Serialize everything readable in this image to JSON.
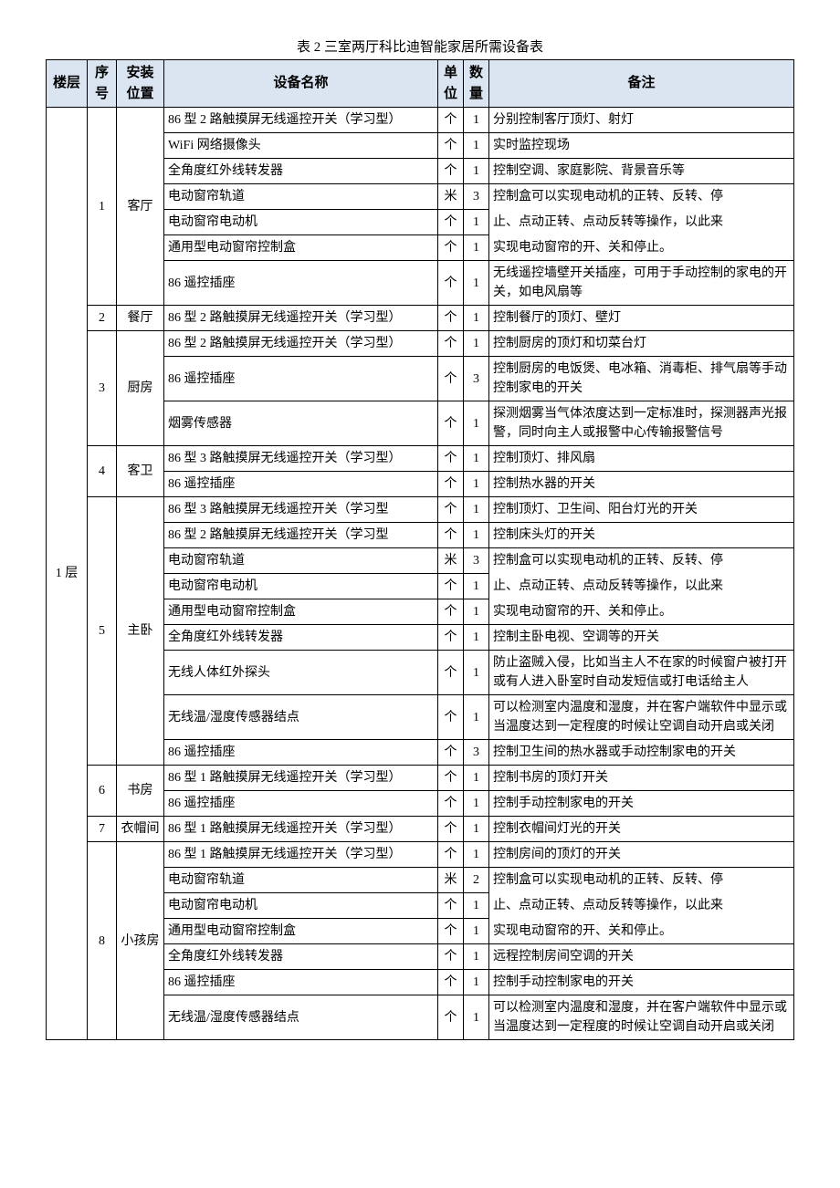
{
  "caption": "表 2    三室两厅科比迪智能家居所需设备表",
  "headers": {
    "floor": "楼层",
    "seq": "序\n号",
    "location": "安装\n位置",
    "name": "设备名称",
    "unit": "单\n位",
    "qty": "数\n量",
    "remark": "备注"
  },
  "floor": "1 层",
  "colors": {
    "header_bg": "#dbe5f1",
    "border": "#000000",
    "text": "#000000",
    "page_bg": "#ffffff"
  },
  "typography": {
    "body_fontsize_pt": 10.5,
    "header_fontsize_pt": 11,
    "font_family": "SimSun"
  },
  "sections": [
    {
      "seq": "1",
      "location": "客厅",
      "items": [
        {
          "name": "86 型 2 路触摸屏无线遥控开关（学习型）",
          "unit": "个",
          "qty": "1",
          "remark": "分别控制客厅顶灯、射灯"
        },
        {
          "name": "WiFi 网络摄像头",
          "unit": "个",
          "qty": "1",
          "remark": "实时监控现场"
        },
        {
          "name": "全角度红外线转发器",
          "unit": "个",
          "qty": "1",
          "remark": "控制空调、家庭影院、背景音乐等"
        },
        {
          "name": "电动窗帘轨道",
          "unit": "米",
          "qty": "3",
          "remark": "控制盒可以实现电动机的正转、反转、停",
          "remark_border": "no-bottom"
        },
        {
          "name": "电动窗帘电动机",
          "unit": "个",
          "qty": "1",
          "remark": "止、点动正转、点动反转等操作，以此来",
          "remark_border": "no-tb"
        },
        {
          "name": "通用型电动窗帘控制盒",
          "unit": "个",
          "qty": "1",
          "remark": "实现电动窗帘的开、关和停止。",
          "remark_border": "no-top"
        },
        {
          "name": "86 遥控插座",
          "unit": "个",
          "qty": "1",
          "remark": "无线遥控墙壁开关插座，可用于手动控制的家电的开关，如电风扇等"
        }
      ]
    },
    {
      "seq": "2",
      "location": "餐厅",
      "items": [
        {
          "name": "86 型 2 路触摸屏无线遥控开关（学习型）",
          "unit": "个",
          "qty": "1",
          "remark": "控制餐厅的顶灯、壁灯"
        }
      ]
    },
    {
      "seq": "3",
      "location": "厨房",
      "items": [
        {
          "name": "86 型 2 路触摸屏无线遥控开关（学习型）",
          "unit": "个",
          "qty": "1",
          "remark": "控制厨房的顶灯和切菜台灯"
        },
        {
          "name": "86 遥控插座",
          "unit": "个",
          "qty": "3",
          "remark": "控制厨房的电饭煲、电冰箱、消毒柜、排气扇等手动控制家电的开关"
        },
        {
          "name": "烟雾传感器",
          "unit": "个",
          "qty": "1",
          "remark": "探测烟雾当气体浓度达到一定标准时，探测器声光报警，同时向主人或报警中心传输报警信号"
        }
      ]
    },
    {
      "seq": "4",
      "location": "客卫",
      "items": [
        {
          "name": "86 型 3 路触摸屏无线遥控开关（学习型）",
          "unit": "个",
          "qty": "1",
          "remark": "控制顶灯、排风扇"
        },
        {
          "name": "86 遥控插座",
          "unit": "个",
          "qty": "1",
          "remark": "控制热水器的开关"
        }
      ]
    },
    {
      "seq": "5",
      "location": "主卧",
      "items": [
        {
          "name": "86 型 3 路触摸屏无线遥控开关（学习型",
          "unit": "个",
          "qty": "1",
          "remark": "控制顶灯、卫生间、阳台灯光的开关"
        },
        {
          "name": "86 型 2 路触摸屏无线遥控开关（学习型",
          "unit": "个",
          "qty": "1",
          "remark": "控制床头灯的开关"
        },
        {
          "name": "电动窗帘轨道",
          "unit": "米",
          "qty": "3",
          "remark": "控制盒可以实现电动机的正转、反转、停",
          "remark_border": "no-bottom"
        },
        {
          "name": "电动窗帘电动机",
          "unit": "个",
          "qty": "1",
          "remark": "止、点动正转、点动反转等操作，以此来",
          "remark_border": "no-tb"
        },
        {
          "name": "通用型电动窗帘控制盒",
          "unit": "个",
          "qty": "1",
          "remark": "实现电动窗帘的开、关和停止。",
          "remark_border": "no-top"
        },
        {
          "name": "全角度红外线转发器",
          "unit": "个",
          "qty": "1",
          "remark": "控制主卧电视、空调等的开关"
        },
        {
          "name": "无线人体红外探头",
          "unit": "个",
          "qty": "1",
          "remark": "防止盗贼入侵，比如当主人不在家的时候窗户被打开或有人进入卧室时自动发短信或打电话给主人"
        },
        {
          "name": "无线温/湿度传感器结点",
          "unit": "个",
          "qty": "1",
          "remark": "可以检测室内温度和湿度，并在客户端软件中显示或当温度达到一定程度的时候让空调自动开启或关闭"
        },
        {
          "name": "86 遥控插座",
          "unit": "个",
          "qty": "3",
          "remark": "控制卫生间的热水器或手动控制家电的开关"
        }
      ]
    },
    {
      "seq": "6",
      "location": "书房",
      "items": [
        {
          "name": "86 型 1 路触摸屏无线遥控开关（学习型）",
          "unit": "个",
          "qty": "1",
          "remark": "控制书房的顶灯开关"
        },
        {
          "name": "86 遥控插座",
          "unit": "个",
          "qty": "1",
          "remark": "控制手动控制家电的开关"
        }
      ]
    },
    {
      "seq": "7",
      "location": "衣帽间",
      "items": [
        {
          "name": "86 型 1 路触摸屏无线遥控开关（学习型）",
          "unit": "个",
          "qty": "1",
          "remark": "控制衣帽间灯光的开关"
        }
      ]
    },
    {
      "seq": "8",
      "location": "小孩房",
      "items": [
        {
          "name": "86 型 1 路触摸屏无线遥控开关（学习型）",
          "unit": "个",
          "qty": "1",
          "remark": "控制房间的顶灯的开关"
        },
        {
          "name": "电动窗帘轨道",
          "unit": "米",
          "qty": "2",
          "remark": "控制盒可以实现电动机的正转、反转、停",
          "remark_border": "no-bottom"
        },
        {
          "name": "电动窗帘电动机",
          "unit": "个",
          "qty": "1",
          "remark": "止、点动正转、点动反转等操作，以此来",
          "remark_border": "no-tb"
        },
        {
          "name": "通用型电动窗帘控制盒",
          "unit": "个",
          "qty": "1",
          "remark": "实现电动窗帘的开、关和停止。",
          "remark_border": "no-top"
        },
        {
          "name": "全角度红外线转发器",
          "unit": "个",
          "qty": "1",
          "remark": "远程控制房间空调的开关"
        },
        {
          "name": "86 遥控插座",
          "unit": "个",
          "qty": "1",
          "remark": "控制手动控制家电的开关"
        },
        {
          "name": "无线温/湿度传感器结点",
          "unit": "个",
          "qty": "1",
          "remark": "可以检测室内温度和湿度，并在客户端软件中显示或当温度达到一定程度的时候让空调自动开启或关闭"
        }
      ]
    }
  ]
}
